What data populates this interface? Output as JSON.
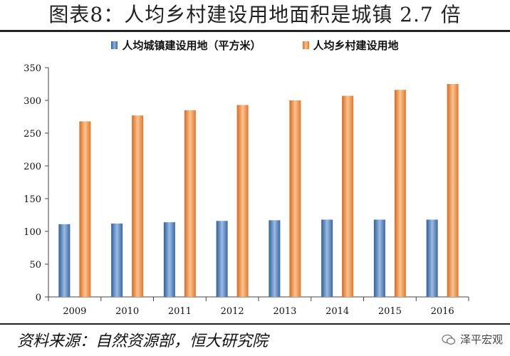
{
  "title": "图表8：人均乡村建设用地面积是城镇 2.7 倍",
  "source": "资料来源：自然资源部，恒大研究院",
  "watermark": "泽平宏观",
  "colors": {
    "series1": "#4a7ebb",
    "series2": "#f79646",
    "axis": "#444444"
  },
  "chart_data": {
    "type": "bar",
    "categories": [
      "2009",
      "2010",
      "2011",
      "2012",
      "2013",
      "2014",
      "2015",
      "2016"
    ],
    "series": [
      {
        "name": "人均城镇建设用地（平方米）",
        "values": [
          111,
          112,
          114,
          116,
          117,
          118,
          118,
          118
        ],
        "color": "#4a7ebb"
      },
      {
        "name": "人均乡村建设用地",
        "values": [
          268,
          277,
          285,
          293,
          300,
          307,
          316,
          325
        ],
        "color": "#f79646"
      }
    ],
    "ylim": [
      0,
      350
    ],
    "yticks": [
      0,
      50,
      100,
      150,
      200,
      250,
      300,
      350
    ],
    "grid": false,
    "legend": "top"
  }
}
